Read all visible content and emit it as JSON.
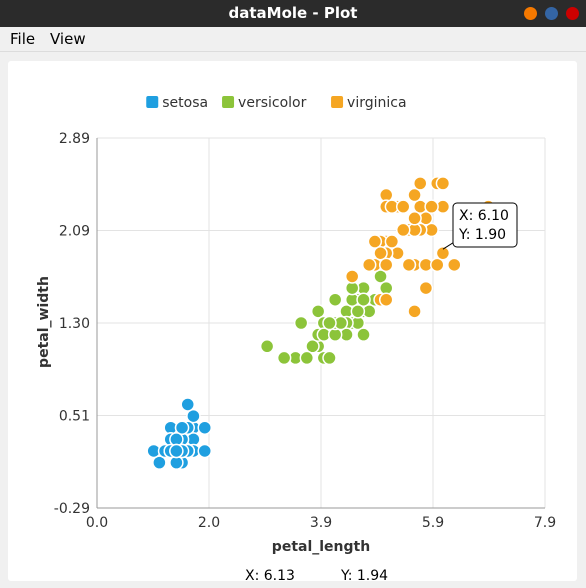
{
  "window": {
    "title": "dataMole - Plot",
    "buttons": [
      {
        "name": "minimize",
        "color": "#f57900"
      },
      {
        "name": "maximize",
        "color": "#3465a4"
      },
      {
        "name": "close",
        "color": "#cc0000"
      }
    ]
  },
  "menu": [
    {
      "id": "file",
      "label": "File"
    },
    {
      "id": "view",
      "label": "View"
    }
  ],
  "tooltip": {
    "x_label": "X: 6.10",
    "y_label": "Y: 1.90",
    "x": 6.1,
    "y": 1.9
  },
  "status": {
    "x_label": "X: 6.13",
    "y_label": "Y: 1.94"
  },
  "chart_data": {
    "type": "scatter",
    "xlabel": "petal_length",
    "ylabel": "petal_width",
    "xlim": [
      0.0,
      7.9
    ],
    "ylim": [
      -0.29,
      2.89
    ],
    "xticks": [
      "0.0",
      "2.0",
      "3.9",
      "5.9",
      "7.9"
    ],
    "yticks": [
      "2.89",
      "2.09",
      "1.30",
      "0.51",
      "-0.29"
    ],
    "grid": true,
    "legend_position": "top-center",
    "series": [
      {
        "name": "setosa",
        "color": "#1f9fe0",
        "points": [
          [
            1.4,
            0.2
          ],
          [
            1.4,
            0.2
          ],
          [
            1.3,
            0.2
          ],
          [
            1.5,
            0.2
          ],
          [
            1.4,
            0.2
          ],
          [
            1.7,
            0.4
          ],
          [
            1.4,
            0.3
          ],
          [
            1.5,
            0.2
          ],
          [
            1.4,
            0.2
          ],
          [
            1.5,
            0.1
          ],
          [
            1.5,
            0.2
          ],
          [
            1.6,
            0.2
          ],
          [
            1.4,
            0.1
          ],
          [
            1.1,
            0.1
          ],
          [
            1.2,
            0.2
          ],
          [
            1.5,
            0.4
          ],
          [
            1.3,
            0.4
          ],
          [
            1.4,
            0.3
          ],
          [
            1.7,
            0.3
          ],
          [
            1.5,
            0.3
          ],
          [
            1.7,
            0.2
          ],
          [
            1.5,
            0.4
          ],
          [
            1.0,
            0.2
          ],
          [
            1.7,
            0.5
          ],
          [
            1.9,
            0.2
          ],
          [
            1.6,
            0.2
          ],
          [
            1.6,
            0.4
          ],
          [
            1.5,
            0.2
          ],
          [
            1.4,
            0.2
          ],
          [
            1.6,
            0.2
          ],
          [
            1.6,
            0.2
          ],
          [
            1.5,
            0.4
          ],
          [
            1.5,
            0.1
          ],
          [
            1.4,
            0.2
          ],
          [
            1.5,
            0.2
          ],
          [
            1.2,
            0.2
          ],
          [
            1.3,
            0.2
          ],
          [
            1.4,
            0.1
          ],
          [
            1.3,
            0.2
          ],
          [
            1.5,
            0.2
          ],
          [
            1.3,
            0.3
          ],
          [
            1.3,
            0.3
          ],
          [
            1.3,
            0.2
          ],
          [
            1.6,
            0.6
          ],
          [
            1.9,
            0.4
          ],
          [
            1.4,
            0.3
          ],
          [
            1.6,
            0.2
          ],
          [
            1.4,
            0.2
          ],
          [
            1.5,
            0.2
          ],
          [
            1.4,
            0.2
          ]
        ]
      },
      {
        "name": "versicolor",
        "color": "#8cc43a",
        "points": [
          [
            4.7,
            1.4
          ],
          [
            4.5,
            1.5
          ],
          [
            4.9,
            1.5
          ],
          [
            4.0,
            1.3
          ],
          [
            4.6,
            1.5
          ],
          [
            4.5,
            1.3
          ],
          [
            4.7,
            1.6
          ],
          [
            3.3,
            1.0
          ],
          [
            4.6,
            1.3
          ],
          [
            3.9,
            1.4
          ],
          [
            3.5,
            1.0
          ],
          [
            4.2,
            1.5
          ],
          [
            4.0,
            1.0
          ],
          [
            4.7,
            1.4
          ],
          [
            3.6,
            1.3
          ],
          [
            4.4,
            1.4
          ],
          [
            4.5,
            1.5
          ],
          [
            4.1,
            1.0
          ],
          [
            4.5,
            1.5
          ],
          [
            3.9,
            1.1
          ],
          [
            4.8,
            1.8
          ],
          [
            4.0,
            1.3
          ],
          [
            4.9,
            1.5
          ],
          [
            4.7,
            1.2
          ],
          [
            4.3,
            1.3
          ],
          [
            4.4,
            1.4
          ],
          [
            4.8,
            1.4
          ],
          [
            5.0,
            1.7
          ],
          [
            4.5,
            1.5
          ],
          [
            3.5,
            1.0
          ],
          [
            3.8,
            1.1
          ],
          [
            3.7,
            1.0
          ],
          [
            3.9,
            1.2
          ],
          [
            5.1,
            1.6
          ],
          [
            4.5,
            1.5
          ],
          [
            4.5,
            1.6
          ],
          [
            4.7,
            1.5
          ],
          [
            4.4,
            1.3
          ],
          [
            4.1,
            1.3
          ],
          [
            4.0,
            1.3
          ],
          [
            4.4,
            1.2
          ],
          [
            4.6,
            1.4
          ],
          [
            4.0,
            1.2
          ],
          [
            3.3,
            1.0
          ],
          [
            4.2,
            1.3
          ],
          [
            4.2,
            1.2
          ],
          [
            4.2,
            1.3
          ],
          [
            4.3,
            1.3
          ],
          [
            3.0,
            1.1
          ],
          [
            4.1,
            1.3
          ]
        ]
      },
      {
        "name": "virginica",
        "color": "#f5a623",
        "points": [
          [
            6.0,
            2.5
          ],
          [
            5.1,
            1.9
          ],
          [
            5.9,
            2.1
          ],
          [
            5.6,
            1.8
          ],
          [
            5.8,
            2.2
          ],
          [
            6.6,
            2.1
          ],
          [
            4.5,
            1.7
          ],
          [
            6.3,
            1.8
          ],
          [
            5.8,
            1.8
          ],
          [
            6.1,
            2.5
          ],
          [
            5.1,
            2.0
          ],
          [
            5.3,
            1.9
          ],
          [
            5.5,
            2.1
          ],
          [
            5.0,
            2.0
          ],
          [
            5.1,
            2.4
          ],
          [
            5.3,
            2.3
          ],
          [
            5.5,
            1.8
          ],
          [
            6.7,
            2.2
          ],
          [
            6.9,
            2.3
          ],
          [
            5.0,
            1.5
          ],
          [
            5.7,
            2.3
          ],
          [
            4.9,
            2.0
          ],
          [
            6.7,
            2.0
          ],
          [
            4.9,
            1.8
          ],
          [
            5.7,
            2.1
          ],
          [
            6.0,
            1.8
          ],
          [
            4.8,
            1.8
          ],
          [
            4.9,
            1.8
          ],
          [
            5.6,
            2.1
          ],
          [
            5.8,
            1.6
          ],
          [
            6.1,
            1.9
          ],
          [
            6.4,
            2.0
          ],
          [
            5.6,
            2.2
          ],
          [
            5.1,
            1.5
          ],
          [
            5.6,
            1.4
          ],
          [
            6.1,
            2.3
          ],
          [
            5.6,
            2.4
          ],
          [
            5.5,
            1.8
          ],
          [
            4.8,
            1.8
          ],
          [
            5.4,
            2.1
          ],
          [
            5.6,
            2.4
          ],
          [
            5.1,
            2.3
          ],
          [
            5.1,
            1.9
          ],
          [
            5.9,
            2.3
          ],
          [
            5.7,
            2.5
          ],
          [
            5.2,
            2.3
          ],
          [
            5.0,
            1.9
          ],
          [
            5.2,
            2.0
          ],
          [
            5.4,
            2.3
          ],
          [
            5.1,
            1.8
          ]
        ]
      }
    ]
  }
}
